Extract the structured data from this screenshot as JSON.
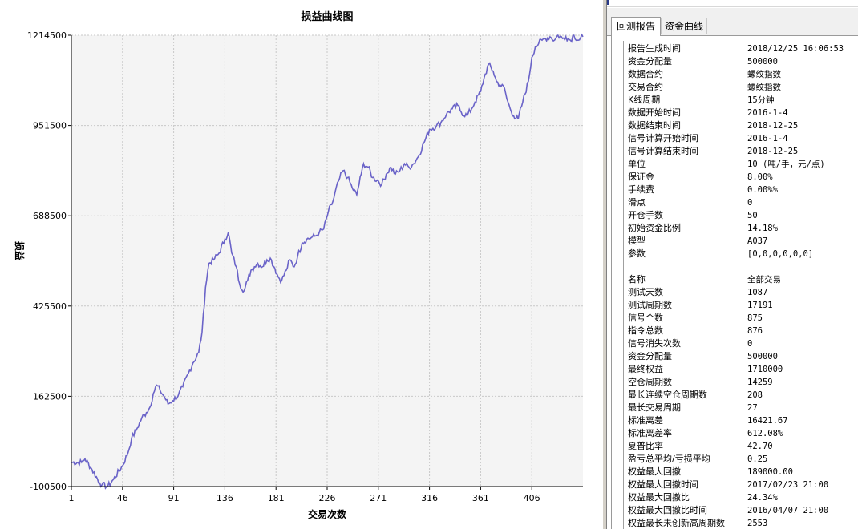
{
  "chart": {
    "title": "损益曲线图",
    "ylabel": "损益",
    "xlabel": "交易次数",
    "line_color": "#6a63c8",
    "plot_bg": "#f4f4f4"
  },
  "chart_data": {
    "type": "line",
    "title": "损益曲线图",
    "xlabel": "交易次数",
    "ylabel": "损益",
    "xlim": [
      1,
      451
    ],
    "ylim": [
      -100500,
      1214500
    ],
    "x_ticks": [
      "1",
      "46",
      "91",
      "136",
      "181",
      "226",
      "271",
      "316",
      "361",
      "406"
    ],
    "y_ticks": [
      "1214500",
      "951500",
      "688500",
      "425500",
      "162500",
      "-100500"
    ],
    "grid": true,
    "series": [
      {
        "color": "#6a63c8",
        "x": [
          1,
          10,
          13,
          19,
          26,
          28,
          33,
          38,
          46,
          51,
          54,
          59,
          63,
          67,
          70,
          73,
          76,
          79,
          83,
          86,
          90,
          95,
          99,
          104,
          108,
          113,
          116,
          119,
          122,
          126,
          131,
          136,
          139,
          142,
          146,
          149,
          153,
          156,
          159,
          162,
          165,
          169,
          173,
          176,
          180,
          183,
          186,
          190,
          193,
          197,
          200,
          204,
          208,
          212,
          216,
          219,
          223,
          227,
          231,
          236,
          240,
          244,
          248,
          252,
          256,
          258,
          262,
          266,
          271,
          274,
          278,
          282,
          286,
          290,
          294,
          298,
          302,
          306,
          311,
          316,
          322,
          326,
          331,
          336,
          341,
          344,
          349,
          353,
          356,
          361,
          364,
          368,
          372,
          375,
          378,
          382,
          384,
          387,
          390,
          394,
          398,
          403,
          406,
          409,
          412,
          415,
          418,
          422,
          426,
          429,
          433,
          436,
          440,
          443,
          447,
          451
        ],
        "y": [
          -30000,
          -30000,
          -20000,
          -50000,
          -90000,
          -95000,
          -100500,
          -80000,
          -40000,
          0,
          40000,
          70000,
          100000,
          115000,
          130000,
          170000,
          195000,
          180000,
          160000,
          140000,
          150000,
          165000,
          190000,
          230000,
          260000,
          290000,
          350000,
          480000,
          550000,
          560000,
          580000,
          620000,
          640000,
          580000,
          540000,
          490000,
          470000,
          500000,
          530000,
          540000,
          550000,
          540000,
          560000,
          565000,
          535000,
          510000,
          500000,
          530000,
          560000,
          540000,
          570000,
          610000,
          620000,
          625000,
          630000,
          640000,
          650000,
          700000,
          730000,
          790000,
          820000,
          800000,
          770000,
          750000,
          810000,
          840000,
          830000,
          800000,
          790000,
          780000,
          810000,
          830000,
          810000,
          820000,
          840000,
          830000,
          840000,
          860000,
          900000,
          940000,
          950000,
          960000,
          985000,
          1000000,
          1010000,
          990000,
          980000,
          1000000,
          1020000,
          1050000,
          1090000,
          1130000,
          1110000,
          1080000,
          1070000,
          1060000,
          1030000,
          1000000,
          980000,
          970000,
          1020000,
          1080000,
          1150000,
          1180000,
          1190000,
          1200000,
          1205000,
          1210000,
          1200000,
          1214500,
          1205000,
          1210000,
          1200000,
          1214500,
          1200000,
          1210000
        ]
      }
    ]
  },
  "report": {
    "tabs": [
      "回测报告",
      "资金曲线"
    ],
    "rows": [
      {
        "label": "报告生成时间",
        "value": "2018/12/25 16:06:53"
      },
      {
        "label": "资金分配量",
        "value": "500000"
      },
      {
        "label": "数据合约",
        "value": "螺纹指数"
      },
      {
        "label": "交易合约",
        "value": "螺纹指数"
      },
      {
        "label": "K线周期",
        "value": "15分钟"
      },
      {
        "label": "数据开始时间",
        "value": "2016-1-4"
      },
      {
        "label": "数据结束时间",
        "value": "2018-12-25"
      },
      {
        "label": "信号计算开始时间",
        "value": "2016-1-4"
      },
      {
        "label": "信号计算结束时间",
        "value": "2018-12-25"
      },
      {
        "label": "单位",
        "value": "10 (吨/手，元/点)"
      },
      {
        "label": "保证金",
        "value": "8.00%"
      },
      {
        "label": "手续费",
        "value": "0.00%%"
      },
      {
        "label": "滑点",
        "value": "0"
      },
      {
        "label": "开仓手数",
        "value": "50"
      },
      {
        "label": "初始资金比例",
        "value": "14.18%"
      },
      {
        "label": "模型",
        "value": "A037"
      },
      {
        "label": "参数",
        "value": "[0,0,0,0,0,0]"
      },
      {
        "label": "",
        "value": ""
      },
      {
        "label": "名称",
        "value": "全部交易"
      },
      {
        "label": "测试天数",
        "value": "1087"
      },
      {
        "label": "测试周期数",
        "value": "17191"
      },
      {
        "label": "信号个数",
        "value": "875"
      },
      {
        "label": "指令总数",
        "value": "876"
      },
      {
        "label": "信号消失次数",
        "value": "0"
      },
      {
        "label": "资金分配量",
        "value": "500000"
      },
      {
        "label": "最终权益",
        "value": "1710000"
      },
      {
        "label": "空仓周期数",
        "value": "14259"
      },
      {
        "label": "最长连续空仓周期数",
        "value": "208"
      },
      {
        "label": "最长交易周期",
        "value": "27"
      },
      {
        "label": "标准离差",
        "value": "16421.67"
      },
      {
        "label": "标准离差率",
        "value": "612.08%"
      },
      {
        "label": "夏普比率",
        "value": "42.70"
      },
      {
        "label": "盈亏总平均/亏损平均",
        "value": "0.25"
      },
      {
        "label": "权益最大回撤",
        "value": "189000.00"
      },
      {
        "label": "权益最大回撤时间",
        "value": "2017/02/23 21:00"
      },
      {
        "label": "权益最大回撤比",
        "value": "24.34%"
      },
      {
        "label": "权益最大回撤比时间",
        "value": "2016/04/07 21:00"
      },
      {
        "label": "权益最长未创新高周期数",
        "value": "2553"
      }
    ]
  }
}
